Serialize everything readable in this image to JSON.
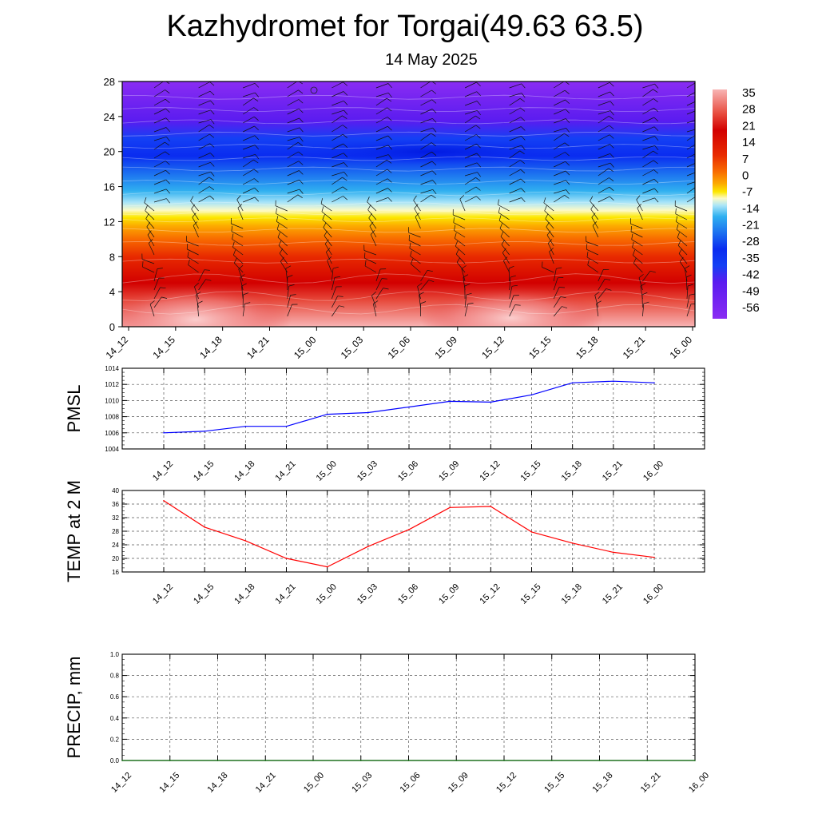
{
  "title": "Kazhydromet for Torgai(49.63 63.5)",
  "subtitle": "14 May 2025",
  "time_labels": [
    "14_12",
    "14_15",
    "14_18",
    "14_21",
    "15_00",
    "15_03",
    "15_06",
    "15_09",
    "15_12",
    "15_15",
    "15_18",
    "15_21",
    "16_00"
  ],
  "chart_data": [
    {
      "type": "heatmap",
      "name": "temperature cross-section",
      "y_ticks": [
        0,
        4,
        8,
        12,
        16,
        20,
        24,
        28
      ],
      "ylim": [
        0,
        28
      ],
      "colorbar_labels": [
        "35",
        "28",
        "21",
        "14",
        "7",
        "0",
        "-7",
        "-14",
        "-21",
        "-28",
        "-35",
        "-42",
        "-49",
        "-56"
      ],
      "color_stops": [
        {
          "v": 0,
          "c": "#f8b4b4"
        },
        {
          "v": 3,
          "c": "#e74a3c"
        },
        {
          "v": 5,
          "c": "#d20000"
        },
        {
          "v": 8,
          "c": "#e82a00"
        },
        {
          "v": 10,
          "c": "#f86a00"
        },
        {
          "v": 11.5,
          "c": "#fcaa00"
        },
        {
          "v": 12.5,
          "c": "#fce800"
        },
        {
          "v": 13.3,
          "c": "#fcfac8"
        },
        {
          "v": 14.2,
          "c": "#a8e4f8"
        },
        {
          "v": 15.5,
          "c": "#30b0f0"
        },
        {
          "v": 17.5,
          "c": "#1c70f0"
        },
        {
          "v": 19.5,
          "c": "#0a2cf0"
        },
        {
          "v": 21.5,
          "c": "#1440f4"
        },
        {
          "v": 23.5,
          "c": "#5a1cf0"
        },
        {
          "v": 28,
          "c": "#8a2cf2"
        }
      ]
    },
    {
      "type": "line",
      "ylabel": "PMSL",
      "ylim": [
        1004,
        1014
      ],
      "y_ticks": [
        1004,
        1006,
        1008,
        1010,
        1012,
        1014
      ],
      "color": "#0000ff",
      "x": [
        "14_12",
        "14_15",
        "14_18",
        "14_21",
        "15_00",
        "15_03",
        "15_06",
        "15_09",
        "15_12",
        "15_15",
        "15_18",
        "15_21",
        "16_00"
      ],
      "values": [
        1006.0,
        1006.2,
        1006.8,
        1006.8,
        1008.3,
        1008.5,
        1009.2,
        1009.9,
        1009.8,
        1010.7,
        1012.2,
        1012.4,
        1012.2
      ]
    },
    {
      "type": "line",
      "ylabel": "TEMP at 2 M",
      "ylim": [
        16,
        40
      ],
      "y_ticks": [
        16,
        20,
        24,
        28,
        32,
        36,
        40
      ],
      "color": "#ff0000",
      "x": [
        "14_12",
        "14_15",
        "14_18",
        "14_21",
        "15_00",
        "15_03",
        "15_06",
        "15_09",
        "15_12",
        "15_15",
        "15_18",
        "15_21",
        "16_00"
      ],
      "values": [
        37.0,
        29.2,
        25.2,
        20.0,
        17.5,
        23.5,
        28.5,
        35.0,
        35.3,
        27.8,
        24.5,
        21.8,
        20.3
      ]
    },
    {
      "type": "line",
      "ylabel": "PRECIP, mm",
      "ylim": [
        0,
        1.0
      ],
      "y_ticks": [
        "0.0",
        "0.2",
        "0.4",
        "0.6",
        "0.8",
        "1.0"
      ],
      "color": "#006400",
      "x": [
        "14_12",
        "14_15",
        "14_18",
        "14_21",
        "15_00",
        "15_03",
        "15_06",
        "15_09",
        "15_12",
        "15_15",
        "15_18",
        "15_21",
        "16_00"
      ],
      "values": [
        0,
        0,
        0,
        0,
        0,
        0,
        0,
        0,
        0,
        0,
        0,
        0,
        0
      ]
    }
  ]
}
